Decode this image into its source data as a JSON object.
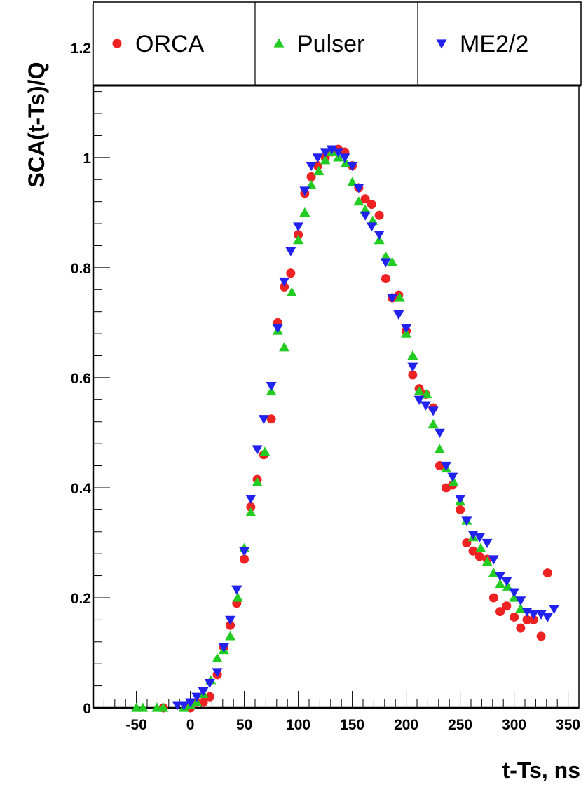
{
  "chart_data": {
    "type": "scatter",
    "xlabel": "t-Ts, ns",
    "ylabel": "SCA(t-Ts)/Q",
    "xlim": [
      -90,
      360
    ],
    "ylim": [
      0,
      1.28
    ],
    "x_ticks": [
      -50,
      0,
      50,
      100,
      150,
      200,
      250,
      300,
      350
    ],
    "y_ticks": [
      0,
      0.2,
      0.4,
      0.6,
      0.8,
      1,
      1.2
    ],
    "y_tick_labels": [
      "0",
      "0.2",
      "0.4",
      "0.6",
      "0.8",
      "1",
      "1.2"
    ],
    "legend_position": "top",
    "series": [
      {
        "name": "ORCA",
        "marker": "circle",
        "color": "#ee2222",
        "x": [
          -25,
          0,
          6,
          12,
          18,
          25,
          31,
          37,
          43,
          50,
          56,
          62,
          68,
          75,
          81,
          87,
          93,
          100,
          106,
          112,
          118,
          125,
          131,
          137,
          143,
          150,
          156,
          162,
          168,
          175,
          181,
          187,
          193,
          200,
          206,
          212,
          218,
          225,
          231,
          237,
          243,
          250,
          256,
          262,
          268,
          275,
          281,
          287,
          293,
          300,
          306,
          312,
          318,
          325,
          331
        ],
        "y": [
          0.0,
          0.0,
          0.01,
          0.01,
          0.02,
          0.06,
          0.11,
          0.15,
          0.19,
          0.27,
          0.365,
          0.415,
          0.46,
          0.525,
          0.7,
          0.765,
          0.79,
          0.86,
          0.935,
          0.965,
          0.985,
          1.0,
          1.01,
          1.015,
          1.01,
          0.985,
          0.945,
          0.925,
          0.915,
          0.895,
          0.78,
          0.745,
          0.75,
          0.685,
          0.605,
          0.58,
          0.57,
          0.545,
          0.44,
          0.4,
          0.405,
          0.36,
          0.3,
          0.285,
          0.275,
          0.27,
          0.2,
          0.175,
          0.185,
          0.165,
          0.145,
          0.16,
          0.16,
          0.13,
          0.245
        ]
      },
      {
        "name": "Pulser",
        "marker": "triangle-up",
        "color": "#22cc22",
        "x": [
          -50,
          -44,
          -31,
          -25,
          -6,
          0,
          6,
          12,
          19,
          25,
          31,
          37,
          44,
          50,
          56,
          62,
          69,
          75,
          81,
          87,
          94,
          100,
          106,
          112,
          119,
          125,
          131,
          137,
          144,
          150,
          156,
          162,
          169,
          175,
          181,
          187,
          194,
          200,
          206,
          212,
          219,
          225,
          231,
          237,
          244,
          250,
          256,
          262,
          269,
          275,
          281,
          287,
          294,
          300,
          306
        ],
        "y": [
          0.0,
          0.0,
          0.0,
          0.0,
          0.0,
          0.005,
          0.01,
          0.025,
          0.05,
          0.09,
          0.105,
          0.13,
          0.2,
          0.29,
          0.355,
          0.41,
          0.465,
          0.575,
          0.685,
          0.655,
          0.755,
          0.85,
          0.9,
          0.95,
          0.975,
          0.995,
          1.01,
          1.0,
          0.99,
          0.955,
          0.92,
          0.905,
          0.885,
          0.85,
          0.82,
          0.81,
          0.745,
          0.68,
          0.64,
          0.575,
          0.57,
          0.515,
          0.47,
          0.435,
          0.41,
          0.375,
          0.34,
          0.31,
          0.29,
          0.265,
          0.245,
          0.225,
          0.22,
          0.2,
          0.18
        ]
      },
      {
        "name": "ME2/2",
        "marker": "triangle-down",
        "color": "#2222ee",
        "x": [
          -12,
          -6,
          0,
          6,
          12,
          18,
          25,
          31,
          37,
          43,
          50,
          56,
          62,
          68,
          75,
          81,
          87,
          93,
          100,
          106,
          112,
          118,
          125,
          131,
          137,
          143,
          150,
          156,
          162,
          168,
          175,
          181,
          187,
          193,
          200,
          206,
          212,
          218,
          225,
          231,
          237,
          243,
          250,
          256,
          262,
          268,
          275,
          281,
          287,
          293,
          300,
          306,
          312,
          318,
          325,
          331,
          337
        ],
        "y": [
          0.005,
          0.005,
          0.01,
          0.02,
          0.03,
          0.045,
          0.065,
          0.11,
          0.16,
          0.215,
          0.285,
          0.38,
          0.47,
          0.525,
          0.585,
          0.69,
          0.775,
          0.83,
          0.875,
          0.94,
          0.985,
          1.0,
          1.01,
          1.015,
          1.01,
          1.0,
          0.985,
          0.945,
          0.895,
          0.875,
          0.86,
          0.81,
          0.745,
          0.715,
          0.69,
          0.62,
          0.56,
          0.55,
          0.54,
          0.5,
          0.44,
          0.42,
          0.38,
          0.34,
          0.315,
          0.31,
          0.3,
          0.27,
          0.24,
          0.23,
          0.21,
          0.195,
          0.175,
          0.17,
          0.17,
          0.165,
          0.18
        ]
      }
    ]
  }
}
